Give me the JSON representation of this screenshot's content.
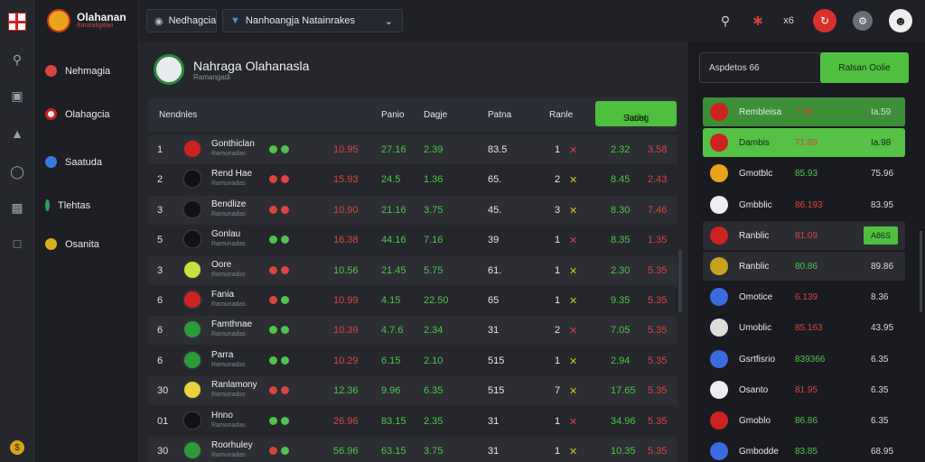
{
  "brand": {
    "name": "Olahanan",
    "sub": "Barataligitlan"
  },
  "rail": {
    "icons": [
      "flag-icon",
      "search-icon",
      "box-icon",
      "shirt-icon",
      "globe-icon",
      "monitor-icon",
      "window-icon",
      "coin-icon"
    ]
  },
  "sidebar": {
    "items": [
      {
        "label": "Nehmagia",
        "color": "#d9443f"
      },
      {
        "label": "Olahagcia",
        "color": "#e9e9e9"
      },
      {
        "label": "Saatuda",
        "color": "#3a7be0"
      },
      {
        "label": "Tlehtas",
        "color": "#2aa15a"
      },
      {
        "label": "Osanita",
        "color": "#d9b11c"
      }
    ]
  },
  "topbar": {
    "select1": "Nedhagcia",
    "select2": "Nanhoangja Natainrakes",
    "score": "x6"
  },
  "team": {
    "title": "Nahraga Olahanasla",
    "sub": "Ramangadi"
  },
  "table": {
    "headers": [
      "Nendnles",
      "Panio",
      "Dagje",
      "Patna",
      "Ranle"
    ],
    "btn_left": "Satihg",
    "btn_right": "Jacet",
    "rows": [
      {
        "rank": "1",
        "name": "Gonthiclan",
        "sub": "Ramunadas",
        "c1": "10.95",
        "c2": "27.16",
        "c3": "2.39",
        "c4": "83.5",
        "c5": "1",
        "c7": "2.32",
        "c8": "3.58"
      },
      {
        "rank": "2",
        "name": "Rend Hae",
        "sub": "Ramunadas",
        "c1": "15.93",
        "c2": "24.5",
        "c3": "1.36",
        "c4": "65.",
        "c5": "2",
        "c7": "8.45",
        "c8": "2.43"
      },
      {
        "rank": "3",
        "name": "Bendlize",
        "sub": "Ramunadas",
        "c1": "10.90",
        "c2": "21.16",
        "c3": "3.75",
        "c4": "45.",
        "c5": "3",
        "c7": "8.30",
        "c8": "7.46"
      },
      {
        "rank": "5",
        "name": "Gonlau",
        "sub": "Ramunadas",
        "c1": "16.38",
        "c2": "44.16",
        "c3": "7.16",
        "c4": "39",
        "c5": "1",
        "c7": "8.35",
        "c8": "1.35"
      },
      {
        "rank": "3",
        "name": "Oore",
        "sub": "Ramunadas",
        "c1": "10.56",
        "c2": "21.45",
        "c3": "5.75",
        "c4": "61.",
        "c5": "1",
        "c7": "2.30",
        "c8": "5.35"
      },
      {
        "rank": "6",
        "name": "Fania",
        "sub": "Ramunadas",
        "c1": "10.99",
        "c2": "4.15",
        "c3": "22.50",
        "c4": "65",
        "c5": "1",
        "c7": "9.35",
        "c8": "5.35"
      },
      {
        "rank": "6",
        "name": "Famthnae",
        "sub": "Ramunadas",
        "c1": "10.39",
        "c2": "4.7.6",
        "c3": "2.34",
        "c4": "31",
        "c5": "2",
        "c7": "7.05",
        "c8": "5.35"
      },
      {
        "rank": "6",
        "name": "Parra",
        "sub": "Ramunadas",
        "c1": "10.29",
        "c2": "6.15",
        "c3": "2.10",
        "c4": "515",
        "c5": "1",
        "c7": "2.94",
        "c8": "5.35"
      },
      {
        "rank": "30",
        "name": "Ranlamony",
        "sub": "Ramunadas",
        "c1": "12.36",
        "c2": "9.96",
        "c3": "6.35",
        "c4": "515",
        "c5": "7",
        "c7": "17.65",
        "c8": "5.35"
      },
      {
        "rank": "01",
        "name": "Hnno",
        "sub": "Ramunadas",
        "c1": "26.96",
        "c2": "83.15",
        "c3": "2.35",
        "c4": "31",
        "c5": "1",
        "c7": "34.96",
        "c8": "5.35"
      },
      {
        "rank": "30",
        "name": "Roorhuley",
        "sub": "Ramunadas",
        "c1": "56.96",
        "c2": "63.15",
        "c3": "3.75",
        "c4": "31",
        "c5": "1",
        "c7": "10.35",
        "c8": "5.35"
      }
    ]
  },
  "right": {
    "head_label": "Aspdetos 66",
    "head_btn": "Ralsan Oolie",
    "rows": [
      {
        "name": "Rembleisa",
        "val": "7.99",
        "score": "Ia.59"
      },
      {
        "name": "Dambis",
        "val": "71.89",
        "score": "Ia.98"
      },
      {
        "name": "Gmotblc",
        "val": "85.93",
        "score": "75.96"
      },
      {
        "name": "Gmbblic",
        "val": "86.193",
        "score": "83.95"
      },
      {
        "name": "Ranblic",
        "val": "81.09",
        "score": "",
        "btn": "A86S"
      },
      {
        "name": "Ranblic",
        "val": "80.86",
        "score": "89.86"
      },
      {
        "name": "Omotice",
        "val": "6.139",
        "score": "8.36"
      },
      {
        "name": "Umoblic",
        "val": "85.163",
        "score": "43.95"
      },
      {
        "name": "Gsrtfisrio",
        "val": "839366",
        "score": "6.35"
      },
      {
        "name": "Osanto",
        "val": "81.95",
        "score": "6.35"
      },
      {
        "name": "Gmoblo",
        "val": "86.86",
        "score": "6.35"
      },
      {
        "name": "Gmbodde",
        "val": "83.85",
        "score": "68.95"
      }
    ]
  }
}
